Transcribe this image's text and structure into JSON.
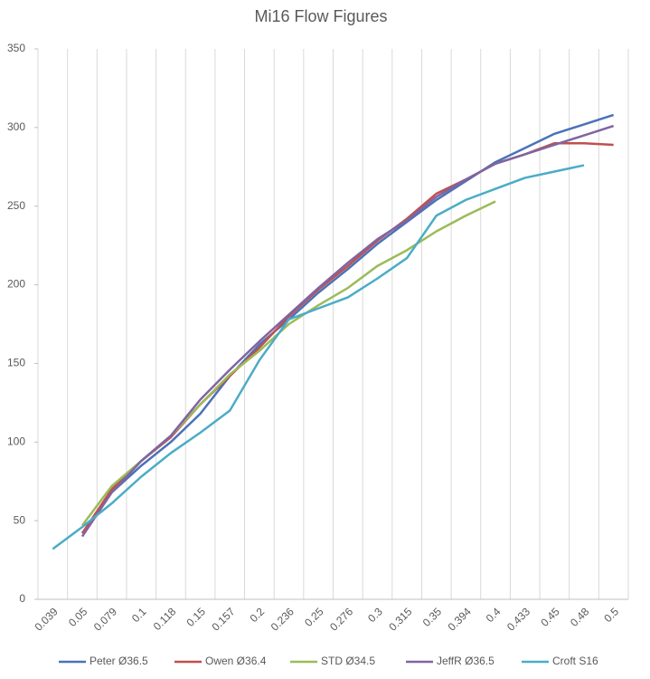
{
  "chart_data": {
    "type": "line",
    "title": "Mi16 Flow Figures",
    "categories": [
      "0.039",
      "0.05",
      "0.079",
      "0.1",
      "0.118",
      "0.15",
      "0.157",
      "0.2",
      "0.236",
      "0.25",
      "0.276",
      "0.3",
      "0.315",
      "0.35",
      "0.394",
      "0.4",
      "0.433",
      "0.45",
      "0.48",
      "0.5"
    ],
    "series": [
      {
        "name": "Peter Ø36.5",
        "color": "#4a72b8",
        "values": [
          null,
          42,
          68,
          85,
          100,
          118,
          142,
          162,
          178,
          195,
          210,
          226,
          240,
          254,
          266,
          278,
          287,
          296,
          302,
          308
        ]
      },
      {
        "name": "Owen Ø36.4",
        "color": "#c0504d",
        "values": [
          null,
          42,
          70,
          88,
          103,
          124,
          142,
          160,
          180,
          197,
          212,
          228,
          242,
          258,
          267,
          277,
          283,
          290,
          290,
          289
        ]
      },
      {
        "name": "STD Ø34.5",
        "color": "#9bbb59",
        "values": [
          null,
          47,
          72,
          88,
          104,
          124,
          143,
          158,
          175,
          187,
          198,
          212,
          222,
          234,
          244,
          253,
          null,
          null,
          null,
          null
        ]
      },
      {
        "name": "JeffR Ø36.5",
        "color": "#8064a2",
        "values": [
          null,
          40,
          68,
          88,
          104,
          127,
          146,
          164,
          181,
          198,
          214,
          229,
          241,
          256,
          267,
          277,
          283,
          289,
          295,
          301
        ]
      },
      {
        "name": "Croft S16",
        "color": "#4bacc6",
        "values": [
          32,
          46,
          61,
          78,
          93,
          106,
          120,
          152,
          178,
          185,
          192,
          204,
          217,
          244,
          254,
          261,
          268,
          272,
          276,
          null
        ]
      }
    ],
    "ylim": [
      0,
      350
    ],
    "yticks": [
      0,
      50,
      100,
      150,
      200,
      250,
      300,
      350
    ],
    "grid": "x",
    "legend": "bottom"
  }
}
